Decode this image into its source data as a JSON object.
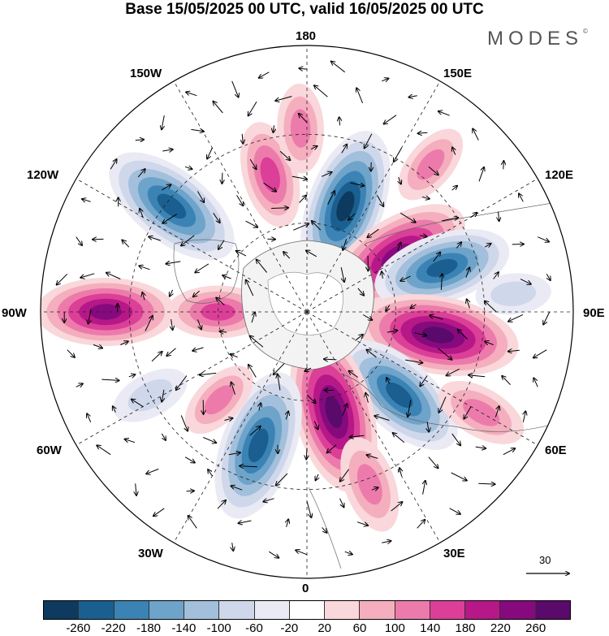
{
  "title": "Base 15/05/2025 00 UTC, valid 16/05/2025 00 UTC",
  "brand": "MODES",
  "brand_mark": "©",
  "longitude_labels": {
    "top": "180",
    "top_right": "150E",
    "right_upper": "120E",
    "right": "90E",
    "right_lower": "60E",
    "bottom_right": "30E",
    "bottom": "0",
    "bottom_left": "30W",
    "left_lower": "60W",
    "left": "90W",
    "left_upper": "120W",
    "top_left": "150W"
  },
  "vector_reference": {
    "value": "30"
  },
  "colorbar": {
    "colors": [
      "#0d3a5e",
      "#1a5f8f",
      "#3b83b5",
      "#6ea3ca",
      "#a2bfdb",
      "#cfd7ea",
      "#eaeaf4",
      "#ffffff",
      "#f9d7da",
      "#f4aebd",
      "#ec7bab",
      "#dc3f97",
      "#b61888",
      "#860a7e",
      "#5a0a6b"
    ],
    "ticks": [
      "-260",
      "-220",
      "-180",
      "-140",
      "-100",
      "-60",
      "-20",
      "20",
      "60",
      "100",
      "140",
      "180",
      "220",
      "260"
    ]
  },
  "field_anomalies": [
    {
      "lon": 160,
      "lat": 52,
      "value": -240
    },
    {
      "lon": 122,
      "lat": 54,
      "value": 230
    },
    {
      "lon": 108,
      "lat": 42,
      "value": -200
    },
    {
      "lon": 80,
      "lat": 45,
      "value": 250
    },
    {
      "lon": 48,
      "lat": 48,
      "value": -210
    },
    {
      "lon": 15,
      "lat": 55,
      "value": 255
    },
    {
      "lon": 20,
      "lat": 28,
      "value": 110
    },
    {
      "lon": -20,
      "lat": 42,
      "value": -230
    },
    {
      "lon": -62,
      "lat": 30,
      "value": -70
    },
    {
      "lon": -90,
      "lat": 22,
      "value": 200
    },
    {
      "lon": -90,
      "lat": 60,
      "value": 120
    },
    {
      "lon": -128,
      "lat": 32,
      "value": -220
    },
    {
      "lon": -165,
      "lat": 42,
      "value": 130
    },
    {
      "lon": -178,
      "lat": 28,
      "value": 90
    },
    {
      "lon": 60,
      "lat": 22,
      "value": 100
    },
    {
      "lon": -45,
      "lat": 48,
      "value": 80
    },
    {
      "lon": 95,
      "lat": 20,
      "value": -60
    },
    {
      "lon": 140,
      "lat": 25,
      "value": 80
    }
  ]
}
